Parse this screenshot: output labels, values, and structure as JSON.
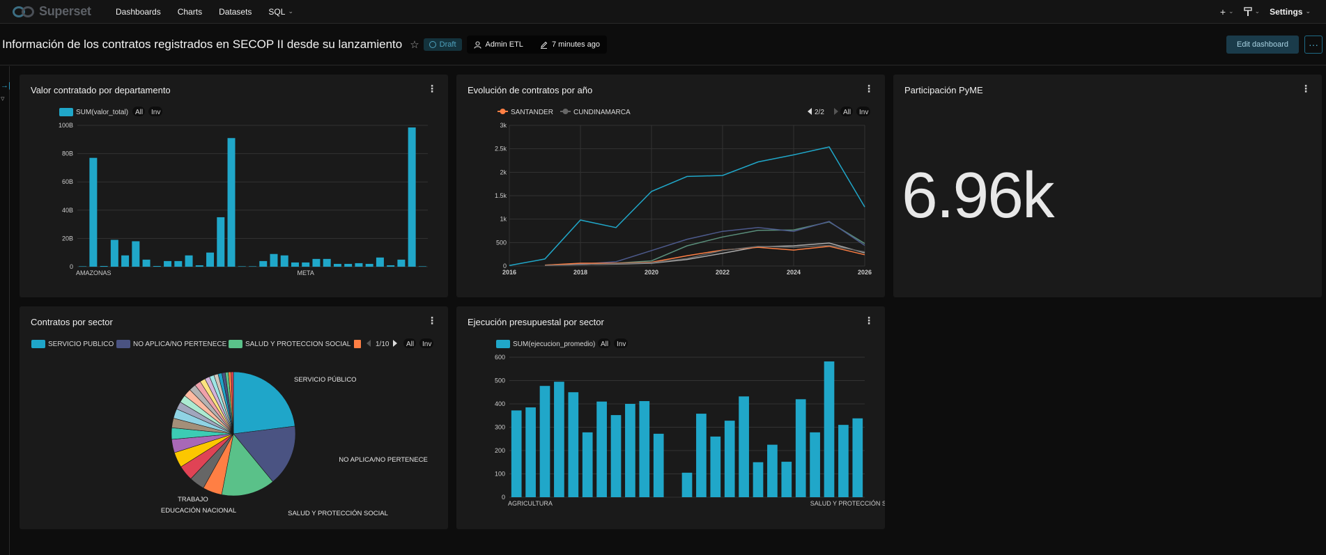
{
  "navbar": {
    "brand": "Superset",
    "items": [
      {
        "label": "Dashboards"
      },
      {
        "label": "Charts"
      },
      {
        "label": "Datasets"
      },
      {
        "label": "SQL"
      }
    ],
    "plus_icon": "plus-icon",
    "theme_icon": "paint-brush-icon",
    "settings_label": "Settings"
  },
  "header": {
    "title": "Información de los contratos registrados en SECOP II desde su lanzamiento",
    "status": "Draft",
    "owner": "Admin ETL",
    "modified": "7 minutes ago",
    "edit_label": "Edit dashboard",
    "more_label": "···"
  },
  "colors": {
    "accent": "#20a7c9",
    "background": "#0d0d0d",
    "card": "#1a1a1a",
    "santander": "#ff7f44",
    "cundinamarca": "#666666"
  },
  "cards": {
    "valor": {
      "title": "Valor contratado por departamento",
      "legend": {
        "series": "SUM(valor_total)",
        "all": "All",
        "inv": "Inv"
      }
    },
    "evolucion": {
      "title": "Evolución de contratos por año",
      "legend": {
        "s1": "SANTANDER",
        "s2": "CUNDINAMARCA",
        "page": "2/2",
        "all": "All",
        "inv": "Inv"
      }
    },
    "pyme": {
      "title": "Participación PyME",
      "value": "6.96k"
    },
    "sector": {
      "title": "Contratos por sector",
      "legend": {
        "s1": "SERVICIO PUBLICO",
        "s2": "NO APLICA/NO PERTENECE",
        "s3": "SALUD Y PROTECCION SOCIAL",
        "page": "1/10",
        "all": "All",
        "inv": "Inv"
      }
    },
    "ejecucion": {
      "title": "Ejecución presupuestal por sector",
      "legend": {
        "series": "SUM(ejecucion_promedio)",
        "all": "All",
        "inv": "Inv"
      }
    }
  },
  "chart_data": [
    {
      "id": "valor",
      "type": "bar",
      "title": "Valor contratado por departamento",
      "series_name": "SUM(valor_total)",
      "ylim": [
        0,
        100
      ],
      "yticks": [
        "0",
        "20B",
        "40B",
        "60B",
        "80B",
        "100B"
      ],
      "ytick_values": [
        0,
        20,
        40,
        60,
        80,
        100
      ],
      "category_labels": [
        {
          "index": 0,
          "text": "AMAZONAS"
        },
        {
          "index": 21,
          "text": "META"
        }
      ],
      "values": [
        0.3,
        77,
        0.5,
        19,
        8,
        18,
        5,
        0.5,
        4,
        4,
        8,
        1,
        10,
        35,
        91,
        0.3,
        0.3,
        4,
        9,
        8,
        3,
        3,
        5.5,
        5.5,
        2,
        2,
        2.5,
        2,
        6.5,
        1,
        5,
        98.5,
        0.3
      ],
      "value_unit": "B",
      "grid": true
    },
    {
      "id": "evolucion",
      "type": "line",
      "title": "Evolución de contratos por año",
      "xlim": [
        2016,
        2026
      ],
      "xticks": [
        2016,
        2018,
        2020,
        2022,
        2024,
        2026
      ],
      "ylim": [
        0,
        3000
      ],
      "yticks": [
        "0",
        "500",
        "1k",
        "1.5k",
        "2k",
        "2.5k",
        "3k"
      ],
      "ytick_values": [
        0,
        500,
        1000,
        1500,
        2000,
        2500,
        3000
      ],
      "grid": true,
      "series": [
        {
          "color": "#20a7c9",
          "points": [
            [
              2016,
              10
            ],
            [
              2017,
              150
            ],
            [
              2018,
              980
            ],
            [
              2019,
              820
            ],
            [
              2020,
              1590
            ],
            [
              2021,
              1910
            ],
            [
              2022,
              1930
            ],
            [
              2023,
              2220
            ],
            [
              2024,
              2370
            ],
            [
              2025,
              2540
            ],
            [
              2026,
              1260
            ]
          ]
        },
        {
          "color": "#5a8f7b",
          "points": [
            [
              2017,
              20
            ],
            [
              2018,
              50
            ],
            [
              2019,
              60
            ],
            [
              2020,
              110
            ],
            [
              2021,
              430
            ],
            [
              2022,
              620
            ],
            [
              2023,
              760
            ],
            [
              2024,
              770
            ],
            [
              2025,
              940
            ],
            [
              2026,
              480
            ]
          ]
        },
        {
          "color": "#4d5a8c",
          "points": [
            [
              2017,
              10
            ],
            [
              2018,
              40
            ],
            [
              2019,
              90
            ],
            [
              2020,
              330
            ],
            [
              2021,
              570
            ],
            [
              2022,
              740
            ],
            [
              2023,
              820
            ],
            [
              2024,
              740
            ],
            [
              2025,
              950
            ],
            [
              2026,
              440
            ]
          ]
        },
        {
          "color": "#aaaaaa",
          "points": [
            [
              2017,
              15
            ],
            [
              2018,
              30
            ],
            [
              2019,
              40
            ],
            [
              2020,
              60
            ],
            [
              2021,
              140
            ],
            [
              2022,
              270
            ],
            [
              2023,
              410
            ],
            [
              2024,
              430
            ],
            [
              2025,
              490
            ],
            [
              2026,
              280
            ]
          ]
        },
        {
          "name": "SANTANDER",
          "color": "#ff7f44",
          "points": [
            [
              2017,
              20
            ],
            [
              2018,
              60
            ],
            [
              2019,
              60
            ],
            [
              2020,
              80
            ],
            [
              2021,
              220
            ],
            [
              2022,
              340
            ],
            [
              2023,
              400
            ],
            [
              2024,
              340
            ],
            [
              2025,
              420
            ],
            [
              2026,
              240
            ]
          ]
        },
        {
          "name": "CUNDINAMARCA",
          "color": "#666666",
          "points": [
            [
              2017,
              10
            ],
            [
              2018,
              25
            ],
            [
              2019,
              50
            ],
            [
              2020,
              70
            ],
            [
              2021,
              160
            ],
            [
              2022,
              330
            ],
            [
              2023,
              420
            ],
            [
              2024,
              400
            ],
            [
              2025,
              440
            ],
            [
              2026,
              300
            ]
          ]
        }
      ]
    },
    {
      "id": "sector",
      "type": "pie",
      "title": "Contratos por sector",
      "slices": [
        {
          "label": "SERVICIO PÚBLICO",
          "value": 23,
          "color": "#1fa6c9"
        },
        {
          "label": "NO APLICA/NO PERTENECE",
          "value": 16,
          "color": "#4a5382"
        },
        {
          "label": "SALUD Y PROTECCIÓN SOCIAL",
          "value": 14,
          "color": "#5ac189"
        },
        {
          "label": "EDUCACIÓN NACIONAL",
          "value": 5,
          "color": "#ff7f44"
        },
        {
          "label": "TRABAJO",
          "value": 4,
          "color": "#666666"
        },
        {
          "label": "",
          "value": 4,
          "color": "#e04355"
        },
        {
          "label": "",
          "value": 4,
          "color": "#fcc700"
        },
        {
          "label": "",
          "value": 3.5,
          "color": "#a868b7"
        },
        {
          "label": "",
          "value": 3,
          "color": "#3cccb4"
        },
        {
          "label": "",
          "value": 2.5,
          "color": "#a38f79"
        },
        {
          "label": "",
          "value": 2.5,
          "color": "#8fd3e4"
        },
        {
          "label": "",
          "value": 2,
          "color": "#a1a6bd"
        },
        {
          "label": "",
          "value": 2,
          "color": "#acead1"
        },
        {
          "label": "",
          "value": 2,
          "color": "#febaa1"
        },
        {
          "label": "",
          "value": 1.8,
          "color": "#b3b3b3"
        },
        {
          "label": "",
          "value": 1.6,
          "color": "#efa1aa"
        },
        {
          "label": "",
          "value": 1.4,
          "color": "#fde380"
        },
        {
          "label": "",
          "value": 1.3,
          "color": "#d3b3da"
        },
        {
          "label": "",
          "value": 1.2,
          "color": "#9ee5e5"
        },
        {
          "label": "",
          "value": 1.1,
          "color": "#d1c6bc"
        },
        {
          "label": "",
          "value": 1,
          "color": "#1fa6c9"
        },
        {
          "label": "",
          "value": 0.9,
          "color": "#4a5382"
        },
        {
          "label": "",
          "value": 0.8,
          "color": "#5ac189"
        },
        {
          "label": "",
          "value": 0.7,
          "color": "#ff7f44"
        },
        {
          "label": "",
          "value": 0.6,
          "color": "#e04355"
        }
      ]
    },
    {
      "id": "ejecucion",
      "type": "bar",
      "title": "Ejecución presupuestal por sector",
      "series_name": "SUM(ejecucion_promedio)",
      "ylim": [
        0,
        600
      ],
      "yticks": [
        "0",
        "100",
        "200",
        "300",
        "400",
        "500",
        "600"
      ],
      "ytick_values": [
        0,
        100,
        200,
        300,
        400,
        500,
        600
      ],
      "category_labels": [
        {
          "index": 0,
          "text": "AGRICULTURA"
        },
        {
          "index": 24,
          "text": "SALUD Y PROTECCIÓN SOCIAL"
        }
      ],
      "values": [
        372,
        385,
        477,
        495,
        450,
        278,
        410,
        352,
        400,
        412,
        272,
        0,
        105,
        358,
        260,
        328,
        432,
        150,
        225,
        152,
        420,
        278,
        582,
        310,
        338
      ],
      "grid": true
    }
  ]
}
